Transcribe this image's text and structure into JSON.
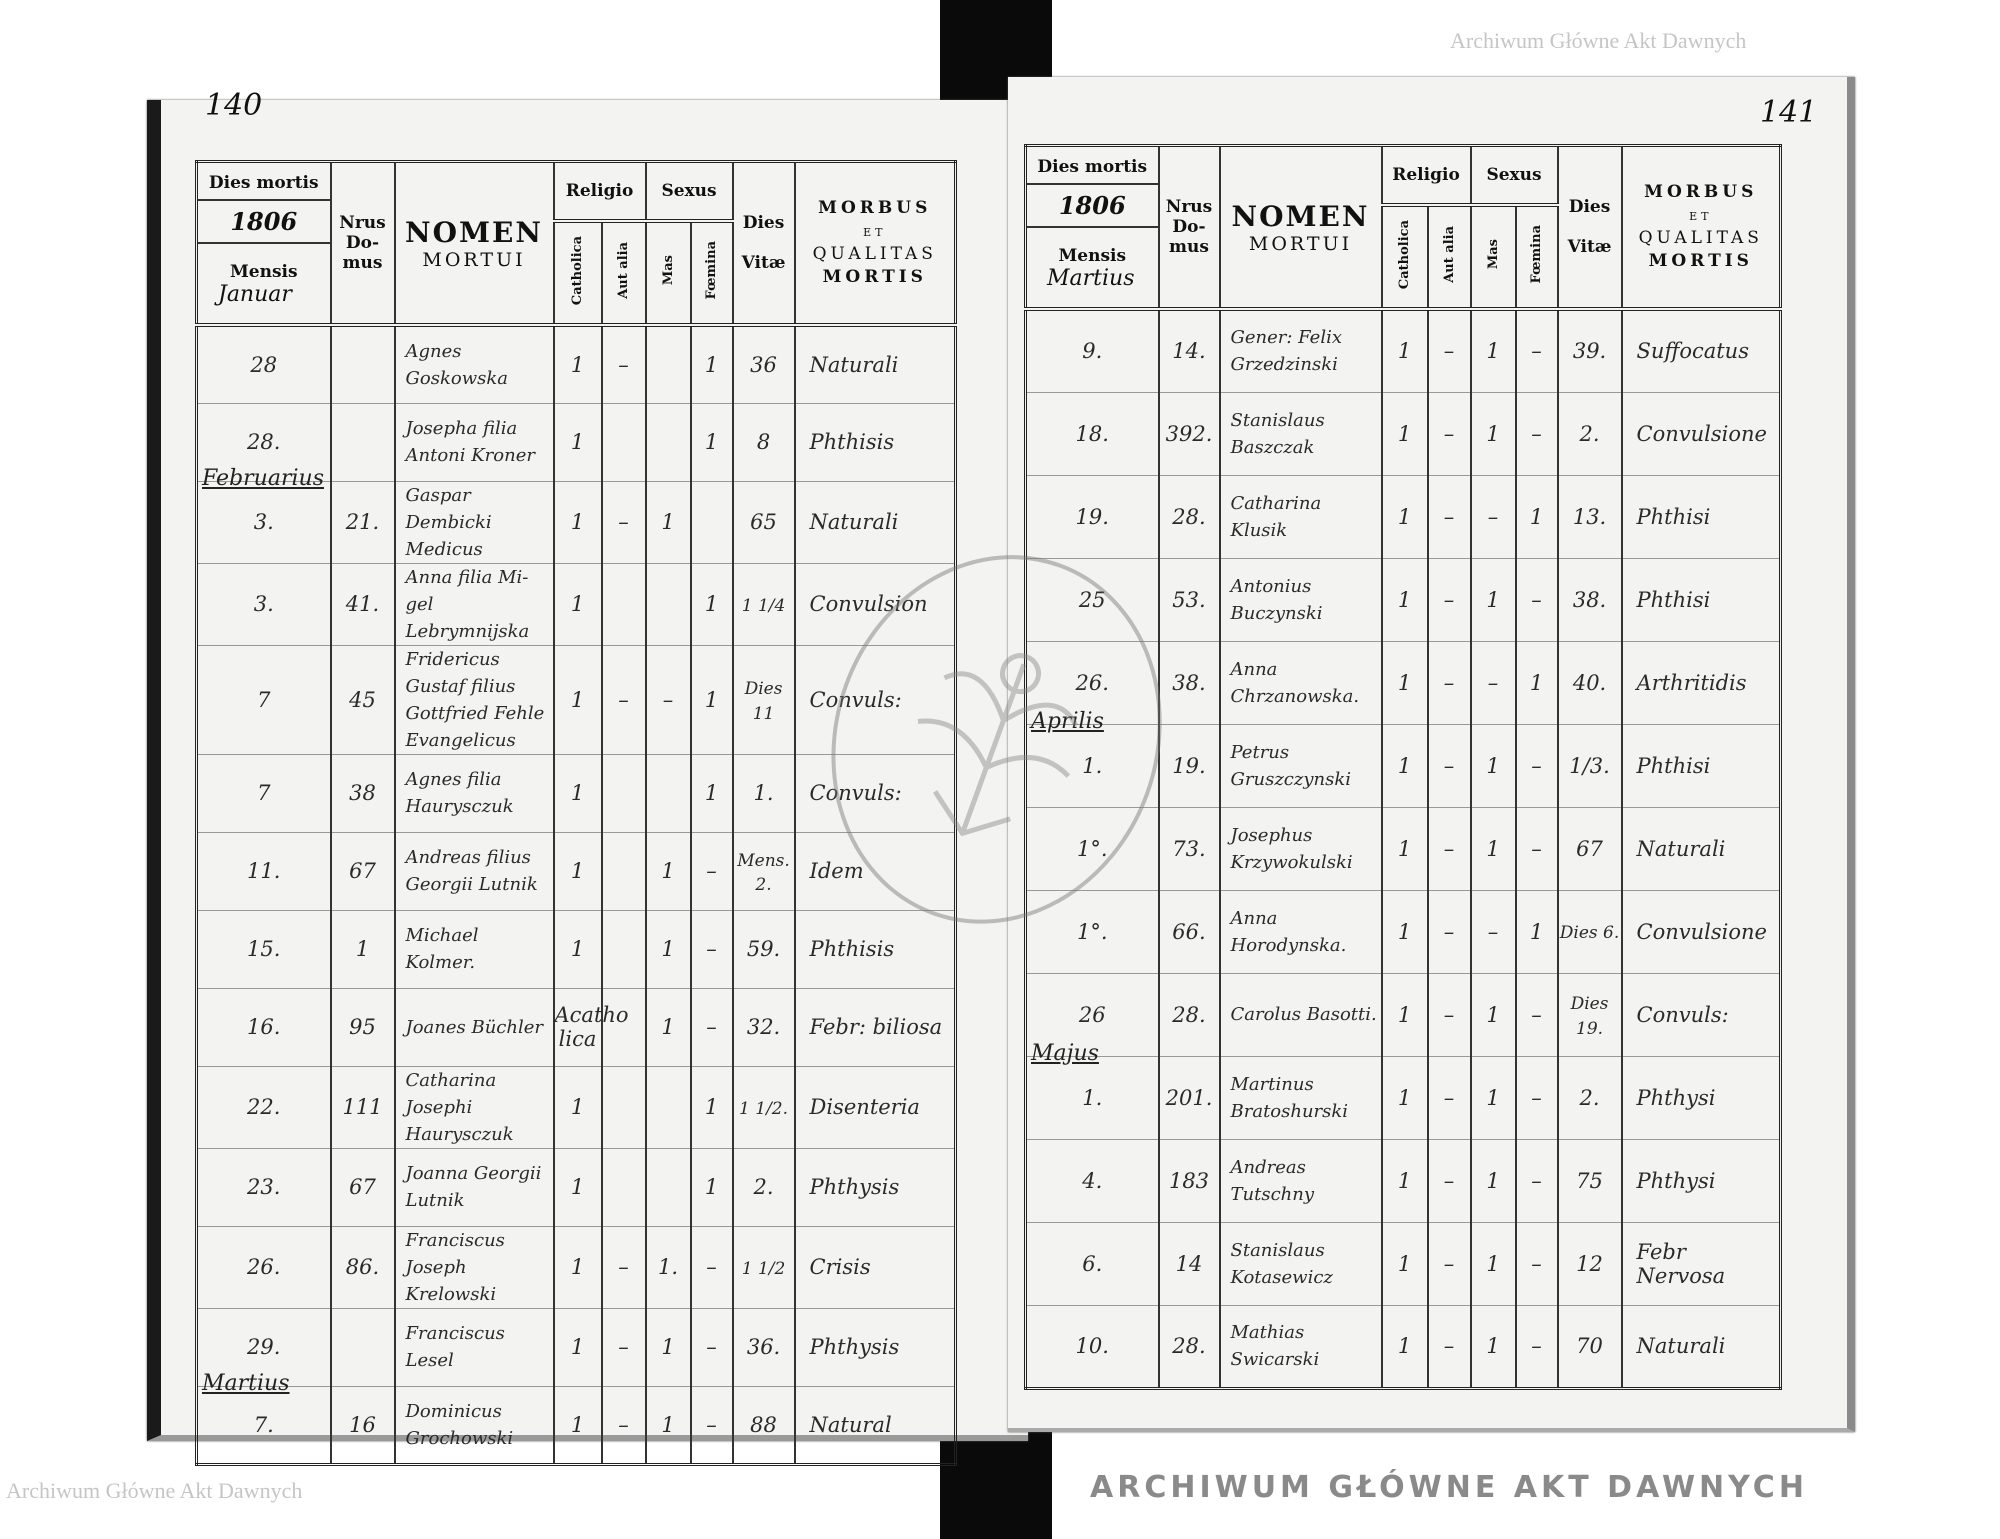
{
  "document": {
    "watermark_text": "Archiwum Główne Akt Dawnych",
    "stamp_text": "ARCHIWUM GŁÓWNE AKT DAWNYCH",
    "header": {
      "dies_mortis": "Dies mortis",
      "mensis": "Mensis",
      "nrus": "Nrus",
      "domus_1": "Do-",
      "domus_2": "mus",
      "nomen": "NOMEN",
      "mortui": "MORTUI",
      "religio": "Religio",
      "sexus": "Sexus",
      "catholica": "Catholica",
      "aut_alia": "Aut alia",
      "mas": "Mas",
      "foemina": "Fœmina",
      "dies": "Dies",
      "vitae": "Vitæ",
      "morbus": "MORBUS",
      "et": "ET",
      "qualitas": "QUALITAS",
      "mortis": "MORTIS"
    },
    "pages": [
      {
        "page_number": "140",
        "year": "1806",
        "first_month": "Januar",
        "rows": [
          {
            "month": "",
            "day": "28",
            "nrus": "",
            "nomen": "Agnes Goskowska",
            "catholica": "1",
            "aut_alia": "–",
            "mas": "",
            "foemina": "1",
            "dies_vitae": "36",
            "morbus": "Naturali"
          },
          {
            "month": "",
            "day": "28.",
            "nrus": "",
            "nomen": "Josepha filia Antoni Kroner",
            "catholica": "1",
            "aut_alia": "",
            "mas": "",
            "foemina": "1",
            "dies_vitae": "8",
            "morbus": "Phthisis"
          },
          {
            "month": "Februarius",
            "day": "3.",
            "nrus": "21.",
            "nomen": "Gaspar Dembicki Medicus",
            "catholica": "1",
            "aut_alia": "–",
            "mas": "1",
            "foemina": "",
            "dies_vitae": "65",
            "morbus": "Naturali"
          },
          {
            "month": "",
            "day": "3.",
            "nrus": "41.",
            "nomen": "Anna filia Mi- gel Lebrymnijska",
            "catholica": "1",
            "aut_alia": "",
            "mas": "",
            "foemina": "1",
            "dies_vitae": "1 1/4",
            "morbus": "Convulsion"
          },
          {
            "month": "",
            "day": "7",
            "nrus": "45",
            "nomen": "Fridericus Gustaf filius Gottfried Fehle Evangelicus",
            "catholica": "1",
            "aut_alia": "–",
            "mas": "–",
            "foemina": "1",
            "dies_vitae": "Dies 11",
            "morbus": "Convuls:"
          },
          {
            "month": "",
            "day": "7",
            "nrus": "38",
            "nomen": "Agnes filia Haurysczuk",
            "catholica": "1",
            "aut_alia": "",
            "mas": "",
            "foemina": "1",
            "dies_vitae": "1.",
            "morbus": "Convuls:"
          },
          {
            "month": "",
            "day": "11.",
            "nrus": "67",
            "nomen": "Andreas filius Georgii Lutnik",
            "catholica": "1",
            "aut_alia": "",
            "mas": "1",
            "foemina": "–",
            "dies_vitae": "Mens. 2.",
            "morbus": "Idem"
          },
          {
            "month": "",
            "day": "15.",
            "nrus": "1",
            "nomen": "Michael Kolmer.",
            "catholica": "1",
            "aut_alia": "",
            "mas": "1",
            "foemina": "–",
            "dies_vitae": "59.",
            "morbus": "Phthisis"
          },
          {
            "month": "",
            "day": "16.",
            "nrus": "95",
            "nomen": "Joanes Büchler",
            "catholica": "Acatho lica",
            "aut_alia": "",
            "mas": "1",
            "foemina": "–",
            "dies_vitae": "32.",
            "morbus": "Febr: biliosa"
          },
          {
            "month": "",
            "day": "22.",
            "nrus": "111",
            "nomen": "Catharina Josephi Haurysczuk",
            "catholica": "1",
            "aut_alia": "",
            "mas": "",
            "foemina": "1",
            "dies_vitae": "1 1/2.",
            "morbus": "Disenteria"
          },
          {
            "month": "",
            "day": "23.",
            "nrus": "67",
            "nomen": "Joanna Georgii Lutnik",
            "catholica": "1",
            "aut_alia": "",
            "mas": "",
            "foemina": "1",
            "dies_vitae": "2.",
            "morbus": "Phthysis"
          },
          {
            "month": "",
            "day": "26.",
            "nrus": "86.",
            "nomen": "Franciscus Joseph Krelowski",
            "catholica": "1",
            "aut_alia": "–",
            "mas": "1.",
            "foemina": "–",
            "dies_vitae": "1 1/2",
            "morbus": "Crisis"
          },
          {
            "month": "",
            "day": "29.",
            "nrus": "",
            "nomen": "Franciscus Lesel",
            "catholica": "1",
            "aut_alia": "–",
            "mas": "1",
            "foemina": "–",
            "dies_vitae": "36.",
            "morbus": "Phthysis"
          },
          {
            "month": "Martius",
            "day": "7.",
            "nrus": "16",
            "nomen": "Dominicus Grochowski",
            "catholica": "1",
            "aut_alia": "–",
            "mas": "1",
            "foemina": "–",
            "dies_vitae": "88",
            "morbus": "Natural"
          }
        ]
      },
      {
        "page_number": "141",
        "year": "1806",
        "first_month": "Martius",
        "rows": [
          {
            "month": "",
            "day": "9.",
            "nrus": "14.",
            "nomen": "Gener: Felix Grzedzinski",
            "catholica": "1",
            "aut_alia": "–",
            "mas": "1",
            "foemina": "–",
            "dies_vitae": "39.",
            "morbus": "Suffocatus"
          },
          {
            "month": "",
            "day": "18.",
            "nrus": "392.",
            "nomen": "Stanislaus Baszczak",
            "catholica": "1",
            "aut_alia": "–",
            "mas": "1",
            "foemina": "–",
            "dies_vitae": "2.",
            "morbus": "Convulsione"
          },
          {
            "month": "",
            "day": "19.",
            "nrus": "28.",
            "nomen": "Catharina Klusik",
            "catholica": "1",
            "aut_alia": "–",
            "mas": "–",
            "foemina": "1",
            "dies_vitae": "13.",
            "morbus": "Phthisi"
          },
          {
            "month": "",
            "day": "25",
            "nrus": "53.",
            "nomen": "Antonius Buczynski",
            "catholica": "1",
            "aut_alia": "–",
            "mas": "1",
            "foemina": "–",
            "dies_vitae": "38.",
            "morbus": "Phthisi"
          },
          {
            "month": "",
            "day": "26.",
            "nrus": "38.",
            "nomen": "Anna Chrzanowska.",
            "catholica": "1",
            "aut_alia": "–",
            "mas": "–",
            "foemina": "1",
            "dies_vitae": "40.",
            "morbus": "Arthritidis"
          },
          {
            "month": "Aprilis",
            "day": "1.",
            "nrus": "19.",
            "nomen": "Petrus Gruszczynski",
            "catholica": "1",
            "aut_alia": "–",
            "mas": "1",
            "foemina": "–",
            "dies_vitae": "1/3.",
            "morbus": "Phthisi"
          },
          {
            "month": "",
            "day": "1°.",
            "nrus": "73.",
            "nomen": "Josephus Krzywokulski",
            "catholica": "1",
            "aut_alia": "–",
            "mas": "1",
            "foemina": "–",
            "dies_vitae": "67",
            "morbus": "Naturali"
          },
          {
            "month": "",
            "day": "1°.",
            "nrus": "66.",
            "nomen": "Anna Horodynska.",
            "catholica": "1",
            "aut_alia": "–",
            "mas": "–",
            "foemina": "1",
            "dies_vitae": "Dies 6.",
            "morbus": "Convulsione"
          },
          {
            "month": "",
            "day": "26",
            "nrus": "28.",
            "nomen": "Carolus Basotti.",
            "catholica": "1",
            "aut_alia": "–",
            "mas": "1",
            "foemina": "–",
            "dies_vitae": "Dies 19.",
            "morbus": "Convuls:"
          },
          {
            "month": "Majus",
            "day": "1.",
            "nrus": "201.",
            "nomen": "Martinus Bratoshurski",
            "catholica": "1",
            "aut_alia": "–",
            "mas": "1",
            "foemina": "–",
            "dies_vitae": "2.",
            "morbus": "Phthysi"
          },
          {
            "month": "",
            "day": "4.",
            "nrus": "183",
            "nomen": "Andreas Tutschny",
            "catholica": "1",
            "aut_alia": "–",
            "mas": "1",
            "foemina": "–",
            "dies_vitae": "75",
            "morbus": "Phthysi"
          },
          {
            "month": "",
            "day": "6.",
            "nrus": "14",
            "nomen": "Stanislaus Kotasewicz",
            "catholica": "1",
            "aut_alia": "–",
            "mas": "1",
            "foemina": "–",
            "dies_vitae": "12",
            "morbus": "Febr Nervosa"
          },
          {
            "month": "",
            "day": "10.",
            "nrus": "28.",
            "nomen": "Mathias Swicarski",
            "catholica": "1",
            "aut_alia": "–",
            "mas": "1",
            "foemina": "–",
            "dies_vitae": "70",
            "morbus": "Naturali"
          }
        ]
      }
    ]
  }
}
